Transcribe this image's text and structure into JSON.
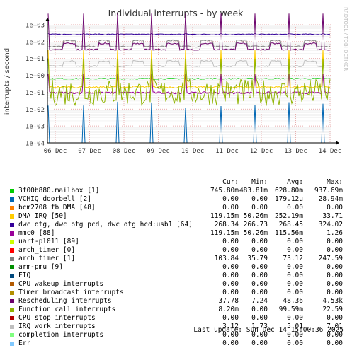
{
  "chart_data": {
    "type": "line",
    "title": "Individual interrupts - by week",
    "ylabel": "interrupts / second",
    "watermark": "RRDTOOL / TOBI OETIKER",
    "log_scale": true,
    "ylim": [
      0.0001,
      1000
    ],
    "y_ticks": [
      "1e+03",
      "1e+02",
      "1e+01",
      "1e+00",
      "1e-01",
      "1e-02",
      "1e-03",
      "1e-04"
    ],
    "x_ticks": [
      "06 Dec",
      "07 Dec",
      "08 Dec",
      "09 Dec",
      "10 Dec",
      "11 Dec",
      "12 Dec",
      "13 Dec",
      "14 Dec"
    ],
    "grid": true,
    "columns": [
      "Cur:",
      "Min:",
      "Avg:",
      "Max:"
    ],
    "series": [
      {
        "name": "3f00b880.mailbox [1]",
        "color": "#00cc00",
        "values": [
          "745.80m",
          "483.81m",
          "628.80m",
          "937.69m"
        ]
      },
      {
        "name": "VCHIQ doorbell [2]",
        "color": "#0066b3",
        "values": [
          "0.00",
          "0.00",
          "179.12u",
          "28.94m"
        ]
      },
      {
        "name": "bcm2708_fb DMA [48]",
        "color": "#ff8000",
        "values": [
          "0.00",
          "0.00",
          "0.00",
          "0.00"
        ]
      },
      {
        "name": "DMA IRQ [50]",
        "color": "#ffcc00",
        "values": [
          "119.15m",
          "50.26m",
          "252.19m",
          "33.71"
        ]
      },
      {
        "name": "dwc_otg, dwc_otg_pcd, dwc_otg_hcd:usb1 [64]",
        "color": "#330099",
        "values": [
          "268.34",
          "266.73",
          "268.45",
          "324.02"
        ]
      },
      {
        "name": "mmc0 [88]",
        "color": "#990099",
        "values": [
          "119.15m",
          "50.26m",
          "115.56m",
          "1.26"
        ]
      },
      {
        "name": "uart-pl011 [89]",
        "color": "#ccff00",
        "values": [
          "0.00",
          "0.00",
          "0.00",
          "0.00"
        ]
      },
      {
        "name": "arch_timer [0]",
        "color": "#ff0000",
        "values": [
          "0.00",
          "0.00",
          "0.00",
          "0.00"
        ]
      },
      {
        "name": "arch_timer [1]",
        "color": "#808080",
        "values": [
          "103.84",
          "35.79",
          "73.12",
          "247.59"
        ]
      },
      {
        "name": "arm-pmu [9]",
        "color": "#008f00",
        "values": [
          "0.00",
          "0.00",
          "0.00",
          "0.00"
        ]
      },
      {
        "name": "FIQ",
        "color": "#00487d",
        "values": [
          "0.00",
          "0.00",
          "0.00",
          "0.00"
        ]
      },
      {
        "name": "CPU wakeup interrupts",
        "color": "#b35a00",
        "values": [
          "0.00",
          "0.00",
          "0.00",
          "0.00"
        ]
      },
      {
        "name": "Timer broadcast interrupts",
        "color": "#b38f00",
        "values": [
          "0.00",
          "0.00",
          "0.00",
          "0.00"
        ]
      },
      {
        "name": "Rescheduling interrupts",
        "color": "#6b006b",
        "values": [
          "37.78",
          "7.24",
          "48.36",
          "4.53k"
        ]
      },
      {
        "name": "Function call interrupts",
        "color": "#8fb300",
        "values": [
          "8.20m",
          "0.00",
          "99.59m",
          "22.59"
        ]
      },
      {
        "name": "CPU stop interrupts",
        "color": "#b30000",
        "values": [
          "0.00",
          "0.00",
          "0.00",
          "0.00"
        ]
      },
      {
        "name": "IRQ work interrupts",
        "color": "#bebebe",
        "values": [
          "3.12",
          "1.73",
          "5.01",
          "7.01"
        ]
      },
      {
        "name": "completion interrupts",
        "color": "#80ff80",
        "values": [
          "0.00",
          "0.00",
          "0.00",
          "0.00"
        ]
      },
      {
        "name": "Err",
        "color": "#80c9ff",
        "values": [
          "0.00",
          "0.00",
          "0.00",
          "0.00"
        ]
      }
    ]
  },
  "last_update": "Last update: Sun Dec 14 15:00:36 2025"
}
